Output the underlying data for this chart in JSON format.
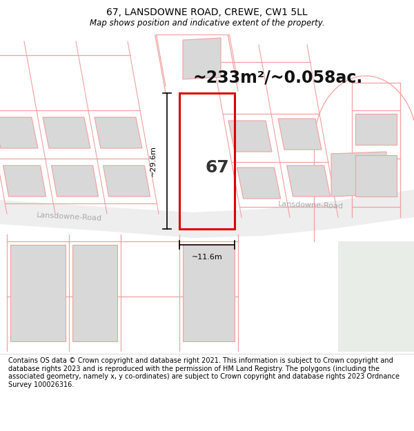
{
  "title": "67, LANSDOWNE ROAD, CREWE, CW1 5LL",
  "subtitle": "Map shows position and indicative extent of the property.",
  "area_label": "~233m²/~0.058ac.",
  "number_label": "67",
  "width_label": "~11.6m",
  "height_label": "~29.6m",
  "road_label_left": "Lansdowne-Road",
  "road_label_right": "Lansdowne-Road",
  "footer_text": "Contains OS data © Crown copyright and database right 2021. This information is subject to Crown copyright and database rights 2023 and is reproduced with the permission of HM Land Registry. The polygons (including the associated geometry, namely x, y co-ordinates) are subject to Crown copyright and database rights 2023 Ordnance Survey 100026316.",
  "bg_color": "#ffffff",
  "property_outline_color": "#dd0000",
  "building_fill_color": "#d8d8d8",
  "grid_line_color": "#f0a0a0",
  "road_fill_color": "#eeeeee",
  "greenish_color": "#e8ede8",
  "title_fontsize": 10,
  "subtitle_fontsize": 8.5,
  "area_fontsize": 17,
  "number_fontsize": 18,
  "road_fontsize": 8,
  "measure_fontsize": 8,
  "footer_fontsize": 7
}
